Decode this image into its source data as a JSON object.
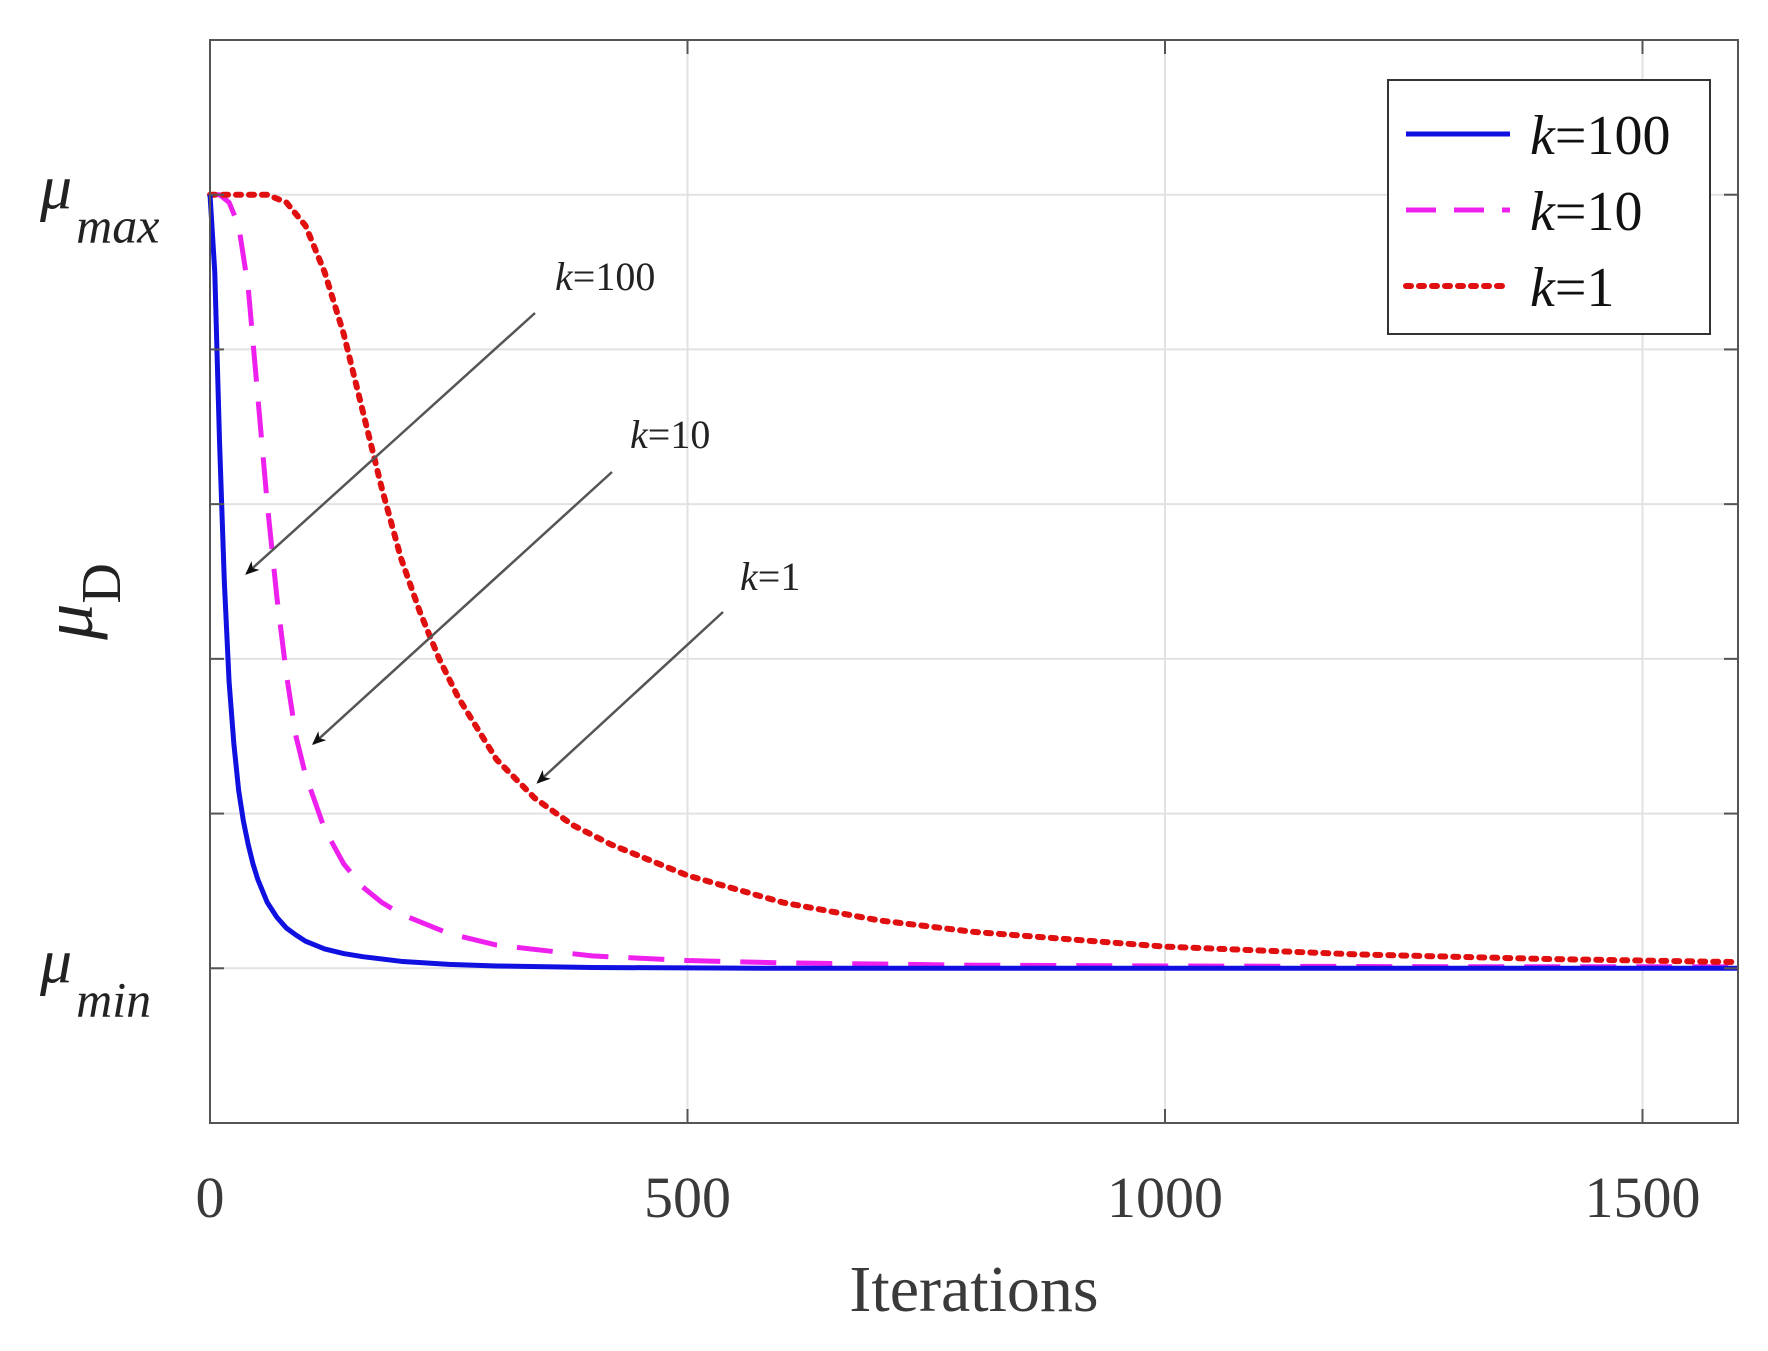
{
  "chart_data": {
    "type": "line",
    "title": "",
    "xlabel": "Iterations",
    "ylabel_symbol": "μ",
    "ylabel_subscript": "D",
    "xlim": [
      0,
      1600
    ],
    "ylim": [
      -0.2,
      1.2
    ],
    "x_ticks": [
      0,
      500,
      1000,
      1500
    ],
    "x_tick_labels": [
      "0",
      "500",
      "1000",
      "1500"
    ],
    "y_ticks": [
      -0.2,
      0.0,
      0.2,
      0.4,
      0.6,
      0.8,
      1.0,
      1.2
    ],
    "y_labels": [
      {
        "symbol": "μ",
        "subscript": "max",
        "value": 1.0
      },
      {
        "symbol": "μ",
        "subscript": "min",
        "value": 0.0
      }
    ],
    "grid": true,
    "legend_position": "top-right",
    "series": [
      {
        "name": "k=100",
        "k_label": "k",
        "k_value": "=100",
        "color": "#1010e0",
        "dash": "solid",
        "x": [
          0,
          5,
          10,
          15,
          20,
          25,
          30,
          35,
          40,
          45,
          50,
          60,
          70,
          80,
          90,
          100,
          120,
          140,
          160,
          200,
          250,
          300,
          400,
          600,
          1000,
          1600
        ],
        "y": [
          1.0,
          0.9,
          0.68,
          0.5,
          0.37,
          0.29,
          0.23,
          0.19,
          0.16,
          0.135,
          0.115,
          0.085,
          0.066,
          0.052,
          0.043,
          0.035,
          0.025,
          0.019,
          0.015,
          0.009,
          0.005,
          0.003,
          0.001,
          0.0,
          0.0,
          0.0
        ]
      },
      {
        "name": "k=10",
        "k_label": "k",
        "k_value": "=10",
        "color": "#ee20ee",
        "dash": "dashed",
        "x": [
          0,
          10,
          20,
          30,
          40,
          50,
          60,
          70,
          80,
          90,
          100,
          120,
          140,
          160,
          180,
          200,
          250,
          300,
          400,
          500,
          600,
          800,
          1000,
          1300,
          1600
        ],
        "y": [
          1.0,
          1.0,
          0.99,
          0.96,
          0.88,
          0.74,
          0.6,
          0.48,
          0.38,
          0.3,
          0.25,
          0.18,
          0.135,
          0.105,
          0.085,
          0.07,
          0.045,
          0.03,
          0.016,
          0.01,
          0.007,
          0.004,
          0.003,
          0.002,
          0.002
        ]
      },
      {
        "name": "k=1",
        "k_label": "k",
        "k_value": "=1",
        "color": "#e01010",
        "dash": "dotted",
        "x": [
          0,
          20,
          40,
          60,
          80,
          100,
          120,
          140,
          160,
          180,
          200,
          220,
          240,
          260,
          280,
          300,
          340,
          380,
          420,
          500,
          600,
          700,
          800,
          1000,
          1200,
          1400,
          1600
        ],
        "y": [
          1.0,
          1.0,
          1.0,
          1.0,
          0.99,
          0.96,
          0.9,
          0.82,
          0.72,
          0.62,
          0.53,
          0.46,
          0.4,
          0.35,
          0.31,
          0.27,
          0.22,
          0.185,
          0.16,
          0.12,
          0.085,
          0.062,
          0.047,
          0.028,
          0.018,
          0.012,
          0.008
        ]
      }
    ],
    "annotations": [
      {
        "k_label": "k",
        "k_value": "=100",
        "target": [
          30,
          0.5
        ]
      },
      {
        "k_label": "k",
        "k_value": "=10",
        "target": [
          100,
          0.28
        ]
      },
      {
        "k_label": "k",
        "k_value": "=1",
        "target": [
          335,
          0.23
        ]
      }
    ]
  }
}
